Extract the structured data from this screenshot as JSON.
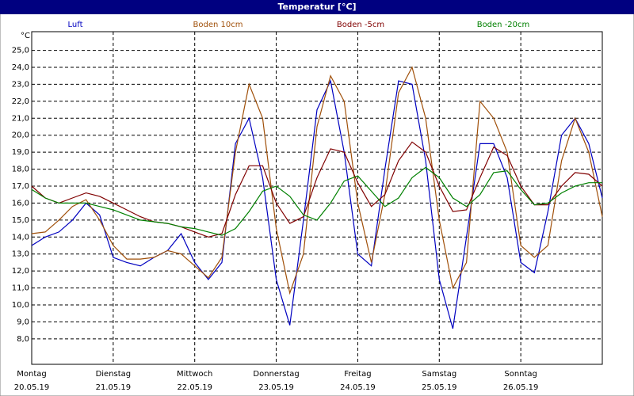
{
  "chart_data": {
    "type": "line",
    "title": "Temperatur [°C]",
    "y_unit": "°C",
    "x": [
      0,
      4,
      8,
      12,
      16,
      20,
      24,
      28,
      32,
      36,
      40,
      44,
      48,
      52,
      56,
      60,
      64,
      68,
      72,
      76,
      80,
      84,
      88,
      92,
      96,
      100,
      104,
      108,
      112,
      116,
      120,
      124,
      128,
      132,
      136,
      140,
      144,
      148,
      152,
      156,
      160,
      164,
      168
    ],
    "xlim": [
      0,
      168
    ],
    "xticks": [
      {
        "value": 0,
        "label": "Montag"
      },
      {
        "value": 24,
        "label": "Dienstag"
      },
      {
        "value": 48,
        "label": "Mittwoch"
      },
      {
        "value": 72,
        "label": "Donnerstag"
      },
      {
        "value": 96,
        "label": "Freitag"
      },
      {
        "value": 120,
        "label": "Samstag"
      },
      {
        "value": 144,
        "label": "Sonntag"
      }
    ],
    "xtick_dates": [
      "20.05.19",
      "21.05.19",
      "22.05.19",
      "23.05.19",
      "24.05.19",
      "25.05.19",
      "26.05.19"
    ],
    "ylim": [
      6.5,
      26.1
    ],
    "yticks": [
      {
        "value": 8,
        "label": "8,0"
      },
      {
        "value": 9,
        "label": "9,0"
      },
      {
        "value": 10,
        "label": "10,0"
      },
      {
        "value": 11,
        "label": "11,0"
      },
      {
        "value": 12,
        "label": "12,0"
      },
      {
        "value": 13,
        "label": "13,0"
      },
      {
        "value": 14,
        "label": "14,0"
      },
      {
        "value": 15,
        "label": "15,0"
      },
      {
        "value": 16,
        "label": "16,0"
      },
      {
        "value": 17,
        "label": "17,0"
      },
      {
        "value": 18,
        "label": "18,0"
      },
      {
        "value": 19,
        "label": "19,0"
      },
      {
        "value": 20,
        "label": "20,0"
      },
      {
        "value": 21,
        "label": "21,0"
      },
      {
        "value": 22,
        "label": "22,0"
      },
      {
        "value": 23,
        "label": "23,0"
      },
      {
        "value": 24,
        "label": "24,0"
      },
      {
        "value": 25,
        "label": "25,0"
      }
    ],
    "grid": true,
    "series": [
      {
        "name": "Luft",
        "color": "#0000c0",
        "values": [
          13.5,
          14.0,
          14.3,
          15.0,
          16.0,
          15.3,
          12.8,
          12.5,
          12.3,
          12.8,
          13.2,
          14.2,
          12.5,
          11.5,
          12.5,
          19.5,
          21.0,
          17.5,
          11.5,
          8.8,
          15.0,
          21.5,
          23.2,
          19.0,
          13.0,
          12.3,
          18.0,
          23.2,
          23.0,
          18.5,
          11.5,
          8.6,
          14.0,
          19.5,
          19.5,
          17.5,
          12.5,
          11.9,
          15.5,
          20.0,
          21.0,
          19.5,
          16.3
        ]
      },
      {
        "name": "Boden 10cm",
        "color": "#a0500a",
        "values": [
          14.2,
          14.3,
          15.0,
          15.8,
          16.2,
          15.0,
          13.5,
          12.7,
          12.7,
          12.8,
          13.2,
          13.0,
          12.3,
          11.6,
          12.8,
          19.0,
          23.0,
          21.0,
          14.5,
          10.7,
          13.0,
          20.5,
          23.5,
          22.0,
          16.0,
          12.5,
          16.5,
          22.5,
          24.0,
          21.0,
          15.0,
          11.0,
          12.5,
          22.0,
          21.0,
          19.0,
          13.5,
          12.8,
          13.5,
          18.5,
          21.0,
          19.0,
          15.2
        ]
      },
      {
        "name": "Boden -5cm",
        "color": "#800000",
        "values": [
          17.0,
          16.3,
          16.0,
          16.3,
          16.6,
          16.4,
          16.0,
          15.6,
          15.2,
          14.9,
          14.8,
          14.6,
          14.3,
          14.0,
          14.2,
          16.5,
          18.2,
          18.2,
          16.0,
          14.8,
          15.2,
          17.5,
          19.2,
          19.0,
          17.2,
          15.8,
          16.5,
          18.5,
          19.6,
          19.0,
          17.0,
          15.5,
          15.6,
          17.5,
          19.3,
          18.8,
          17.0,
          15.9,
          15.9,
          17.0,
          17.8,
          17.7,
          17.0
        ]
      },
      {
        "name": "Boden -20cm",
        "color": "#008000",
        "values": [
          16.8,
          16.3,
          16.0,
          16.0,
          16.0,
          15.8,
          15.6,
          15.3,
          15.0,
          14.9,
          14.8,
          14.6,
          14.5,
          14.3,
          14.1,
          14.5,
          15.5,
          16.7,
          17.0,
          16.4,
          15.3,
          15.0,
          16.0,
          17.3,
          17.6,
          16.7,
          15.8,
          16.3,
          17.5,
          18.1,
          17.5,
          16.3,
          15.8,
          16.5,
          17.8,
          17.9,
          16.8,
          15.9,
          16.0,
          16.6,
          17.0,
          17.2,
          17.2
        ]
      }
    ]
  }
}
